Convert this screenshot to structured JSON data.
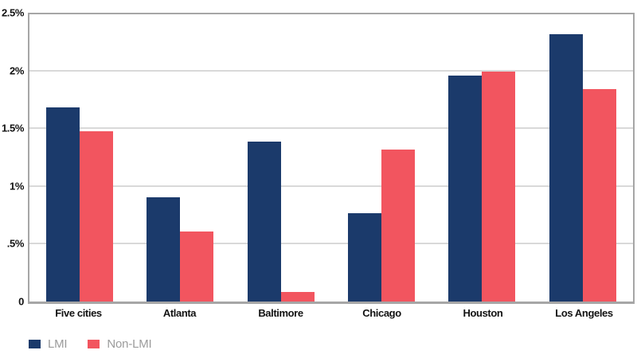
{
  "chart_data": {
    "type": "bar",
    "categories": [
      "Five cities",
      "Atlanta",
      "Baltimore",
      "Chicago",
      "Houston",
      "Los Angeles"
    ],
    "series": [
      {
        "name": "LMI",
        "color": "#1b3a6b",
        "values": [
          1.69,
          0.91,
          1.39,
          0.77,
          1.97,
          2.33
        ]
      },
      {
        "name": "Non-LMI",
        "color": "#f2555f",
        "values": [
          1.48,
          0.61,
          0.08,
          1.32,
          2.0,
          1.85
        ]
      }
    ],
    "title": "",
    "xlabel": "",
    "ylabel": "",
    "y_axis": {
      "min": 0,
      "max": 2.5,
      "tick_step": 0.5,
      "tick_labels": [
        "0",
        ".5%",
        "1%",
        "1.5%",
        "2%",
        "2.5%"
      ]
    },
    "grid": true,
    "legend_position": "bottom-left"
  },
  "colors": {
    "lmi": "#1b3a6b",
    "non_lmi": "#f2555f",
    "gridline": "#d9d9d9",
    "plot_border": "#a6a6a6",
    "axis_text": "#121212",
    "legend_text": "#9b9b9b",
    "background": "#ffffff"
  }
}
